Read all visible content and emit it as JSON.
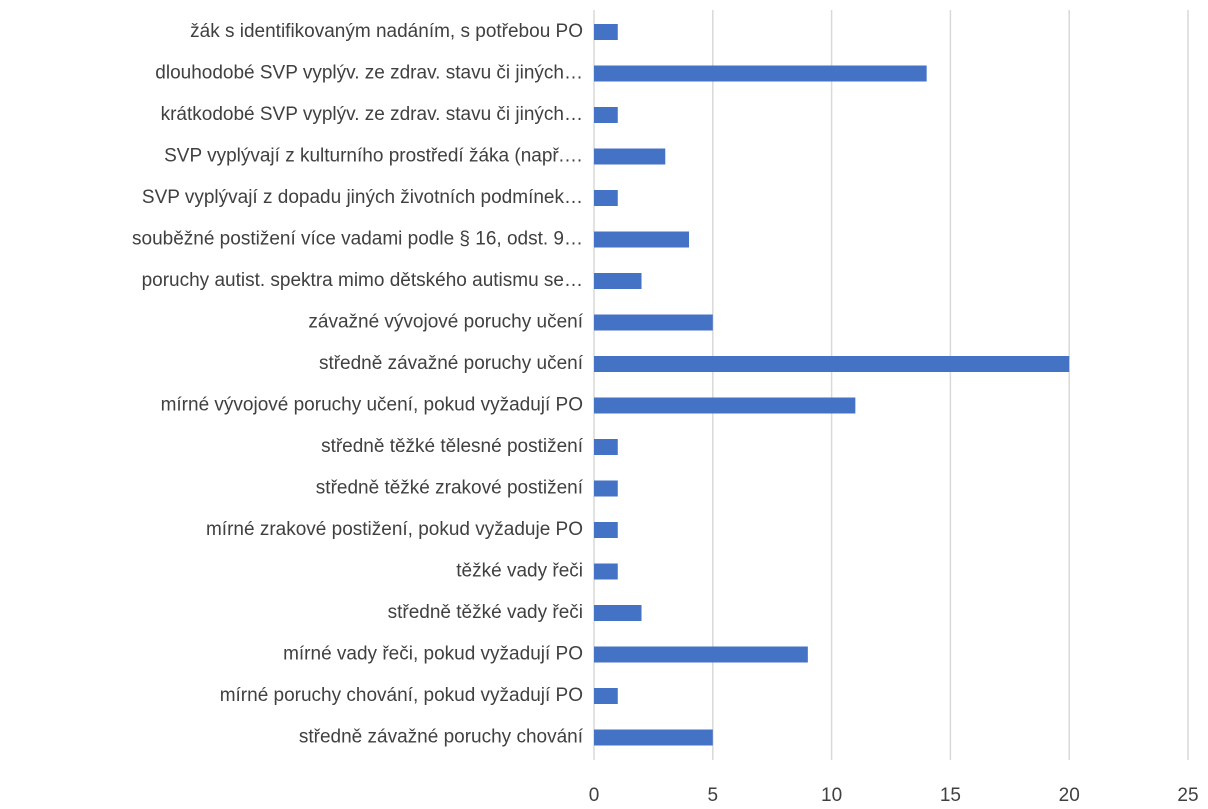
{
  "chart_data": {
    "type": "bar",
    "orientation": "horizontal",
    "categories": [
      "žák s identifikovaným nadáním, s potřebou PO",
      "dlouhodobé SVP vyplýv. ze zdrav. stavu či jiných…",
      "krátkodobé SVP vyplýv. ze zdrav. stavu či jiných…",
      "SVP vyplývají z kulturního prostředí žáka (např.…",
      "SVP vyplývají z dopadu jiných životních podmínek…",
      "souběžné postižení více vadami podle § 16, odst. 9…",
      "poruchy autist. spektra mimo dětského autismu se…",
      "závažné vývojové poruchy učení",
      "středně závažné poruchy učení",
      "mírné vývojové poruchy učení, pokud vyžadují PO",
      "středně těžké tělesné postižení",
      "středně těžké zrakové postižení",
      "mírné zrakové postižení, pokud vyžaduje PO",
      "těžké vady řeči",
      "středně těžké vady řeči",
      "mírné vady řeči, pokud vyžadují PO",
      "mírné poruchy chování, pokud vyžadují PO",
      "středně závažné poruchy chování"
    ],
    "values": [
      1,
      14,
      1,
      3,
      1,
      4,
      2,
      5,
      20,
      11,
      1,
      1,
      1,
      1,
      2,
      9,
      1,
      5
    ],
    "color": "#4472c4",
    "xlim": [
      0,
      25
    ],
    "xticks": [
      0,
      5,
      10,
      15,
      20,
      25
    ],
    "grid": true
  }
}
